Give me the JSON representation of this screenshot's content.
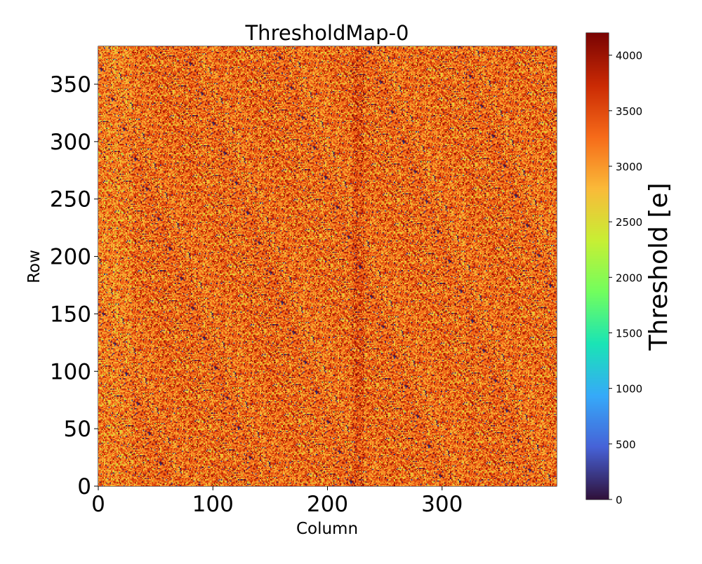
{
  "chart_data": {
    "type": "heatmap",
    "title": "ThresholdMap-0",
    "xlabel": "Column",
    "ylabel": "Row",
    "xlim": [
      0,
      400
    ],
    "ylim": [
      0,
      383
    ],
    "grid": false,
    "grid_shape": {
      "columns": 400,
      "rows": 383
    },
    "x_ticks": [
      0,
      100,
      200,
      300
    ],
    "x_tick_labels": [
      "0",
      "100",
      "200",
      "300"
    ],
    "y_ticks": [
      0,
      50,
      100,
      150,
      200,
      250,
      300,
      350
    ],
    "y_tick_labels": [
      "0",
      "50",
      "100",
      "150",
      "200",
      "250",
      "300",
      "350"
    ],
    "value_summary": {
      "typical_min": 2400,
      "typical_max": 3900,
      "mean": 3300,
      "outlier_low": 0
    },
    "colormap": "turbo",
    "colorbar": {
      "label": "Threshold [e]",
      "range": [
        0,
        4200
      ],
      "ticks": [
        0,
        500,
        1000,
        1500,
        2000,
        2500,
        3000,
        3500,
        4000
      ],
      "tick_labels": [
        "0",
        "500",
        "1000",
        "1500",
        "2000",
        "2500",
        "3000",
        "3500",
        "4000"
      ],
      "position": "right"
    },
    "colors": [
      "#30123b",
      "#4662d7",
      "#36aaf9",
      "#1ae4b6",
      "#72fe5e",
      "#c8ef34",
      "#faba39",
      "#f66b19",
      "#ca2a04",
      "#7a0403"
    ]
  }
}
